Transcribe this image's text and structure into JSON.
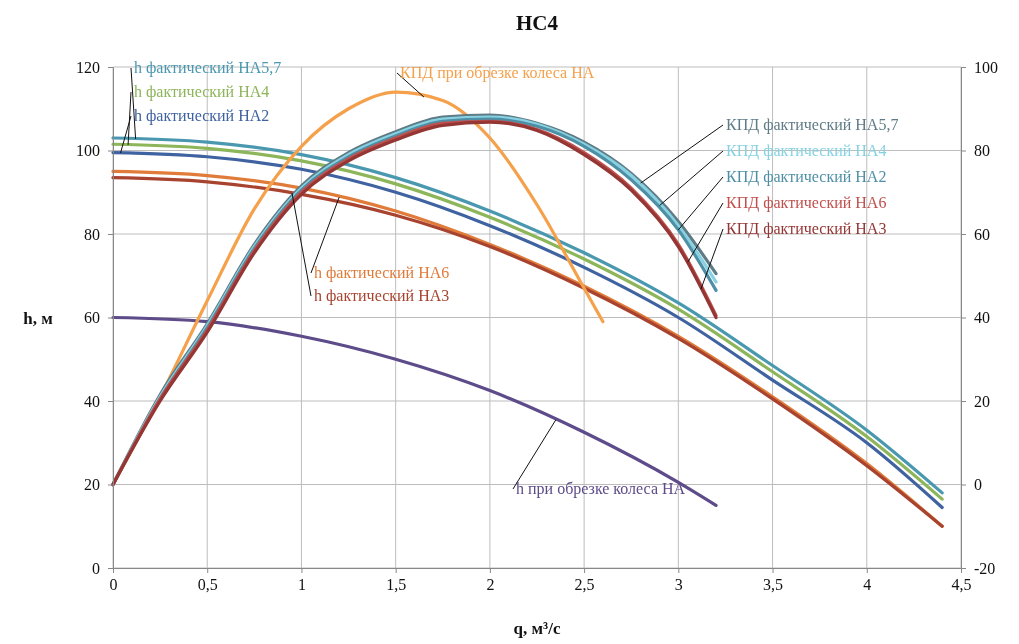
{
  "chart_data": {
    "type": "line",
    "title": "НС4",
    "xlabel": "q, м³/с",
    "ylabel": "h, м",
    "xlim": [
      0,
      4.5
    ],
    "xticks": [
      0,
      {
        "value": 0.5,
        "label": "0,5"
      },
      1,
      {
        "value": 1.5,
        "label": "1,5"
      },
      2,
      {
        "value": 2.5,
        "label": "2,5"
      },
      3,
      {
        "value": 3.5,
        "label": "3,5"
      },
      4,
      {
        "value": 4.5,
        "label": "4,5"
      }
    ],
    "ylim": [
      0,
      120
    ],
    "yticks": [
      0,
      20,
      40,
      60,
      80,
      100,
      120
    ],
    "y2lim": [
      -20,
      100
    ],
    "y2ticks": [
      -20,
      0,
      20,
      40,
      60,
      80,
      100
    ],
    "grid": true,
    "series": [
      {
        "name": "h фактический НА5,7",
        "color": "#4a98b0",
        "x": [
          0,
          0.5,
          1,
          1.5,
          2,
          2.5,
          3,
          3.5,
          4,
          4.4
        ],
        "values": [
          103,
          102,
          99,
          93.5,
          85.5,
          75.5,
          63.5,
          48.5,
          33,
          18
        ]
      },
      {
        "name": "h фактический НА4",
        "color": "#8db55a",
        "x": [
          0,
          0.5,
          1,
          1.5,
          2,
          2.5,
          3,
          3.5,
          4,
          4.4
        ],
        "values": [
          101.5,
          100.5,
          97.5,
          92,
          84,
          74,
          62,
          47,
          31.5,
          16.5
        ]
      },
      {
        "name": "h фактический НА2",
        "color": "#3f62a0",
        "x": [
          0,
          0.5,
          1,
          1.5,
          2,
          2.5,
          3,
          3.5,
          4,
          4.4
        ],
        "values": [
          99.5,
          98.5,
          95.5,
          90,
          82,
          72,
          60,
          45,
          30,
          14.5
        ]
      },
      {
        "name": "h фактический НА6",
        "color": "#e07b39",
        "x": [
          0,
          0.5,
          1,
          1.5,
          2,
          2.5,
          3,
          3.5,
          4,
          4.4
        ],
        "values": [
          95,
          94,
          91,
          85.5,
          77.5,
          67.5,
          55.5,
          41,
          25,
          10
        ]
      },
      {
        "name": "h фактический НА3",
        "color": "#a8432f",
        "x": [
          0,
          0.5,
          1,
          1.5,
          2,
          2.5,
          3,
          3.5,
          4,
          4.4
        ],
        "values": [
          93.5,
          92.5,
          89.5,
          84.5,
          77,
          67,
          55,
          40.5,
          24.5,
          10
        ]
      },
      {
        "name": "h при обрезке колеса НА",
        "color": "#5d4b8a",
        "x": [
          0,
          0.5,
          1,
          1.5,
          2,
          2.5,
          3,
          3.2
        ],
        "values": [
          60,
          59,
          55.5,
          50,
          42.5,
          32.5,
          20.5,
          15
        ]
      },
      {
        "name": "КПД при обрезке колеса НА",
        "color": "#f5a04a",
        "axis": "y2",
        "x": [
          0,
          0.25,
          0.5,
          0.75,
          1,
          1.25,
          1.5,
          1.75,
          2,
          2.25,
          2.5,
          2.6
        ],
        "values": [
          0,
          21,
          44,
          66,
          81,
          90,
          94,
          92,
          83,
          67,
          47,
          39
        ]
      },
      {
        "name": "КПД фактический НА5,7",
        "color": "#5f7b86",
        "axis": "y2",
        "x": [
          0,
          0.25,
          0.5,
          0.75,
          1,
          1.25,
          1.5,
          1.75,
          2,
          2.25,
          2.5,
          2.75,
          3,
          3.2
        ],
        "values": [
          0,
          21.5,
          38.5,
          57.5,
          71.5,
          79.5,
          84.5,
          88,
          88.5,
          86.5,
          82,
          74.5,
          63,
          50.5
        ]
      },
      {
        "name": "КПД фактический НА4",
        "color": "#86d2e2",
        "axis": "y2",
        "x": [
          0,
          0.25,
          0.5,
          0.75,
          1,
          1.25,
          1.5,
          1.75,
          2,
          2.25,
          2.5,
          2.75,
          3,
          3.2
        ],
        "values": [
          0,
          21,
          38,
          57,
          71,
          79,
          84,
          87.5,
          88,
          86.3,
          81.5,
          74,
          62,
          48.5
        ]
      },
      {
        "name": "КПД фактический НА2",
        "color": "#4f8fa6",
        "axis": "y2",
        "x": [
          0,
          0.25,
          0.5,
          0.75,
          1,
          1.25,
          1.5,
          1.75,
          2,
          2.25,
          2.5,
          2.75,
          3,
          3.2
        ],
        "values": [
          0,
          20.5,
          37.5,
          56.5,
          70.5,
          78.5,
          83.5,
          87,
          87.5,
          85.8,
          81,
          73,
          61,
          46.5
        ]
      },
      {
        "name": "КПД фактический НА6",
        "color": "#c0504d",
        "axis": "y2",
        "x": [
          0,
          0.25,
          0.5,
          0.75,
          1,
          1.25,
          1.5,
          1.75,
          2,
          2.25,
          2.5,
          2.75,
          3,
          3.2
        ],
        "values": [
          0,
          20.5,
          37,
          56,
          70,
          78,
          83,
          86.5,
          87,
          85,
          79.5,
          71,
          57.5,
          40.5
        ]
      },
      {
        "name": "КПД фактический НА3",
        "color": "#943634",
        "axis": "y2",
        "x": [
          0,
          0.25,
          0.5,
          0.75,
          1,
          1.25,
          1.5,
          1.75,
          2,
          2.25,
          2.5,
          2.75,
          3,
          3.2
        ],
        "values": [
          0,
          20,
          36.5,
          55.5,
          69.5,
          77.5,
          82.5,
          86,
          86.8,
          84.8,
          79,
          70.5,
          57,
          40
        ]
      }
    ]
  }
}
